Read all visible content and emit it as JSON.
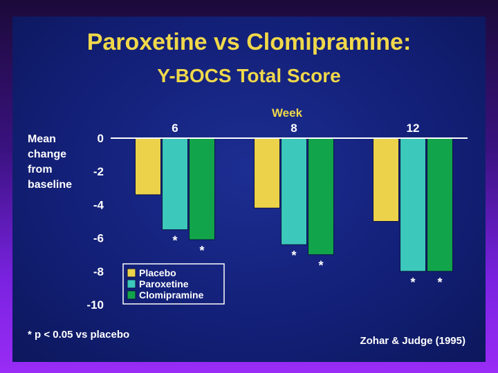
{
  "slide": {
    "title": "Paroxetine vs Clomipramine:",
    "subtitle": "Y-BOCS Total Score",
    "footnote": "* p < 0.05 vs placebo",
    "citation": "Zohar & Judge (1995)"
  },
  "chart_data": {
    "type": "bar",
    "title": "Paroxetine vs Clomipramine:",
    "subtitle": "Y-BOCS Total Score",
    "xlabel": "Week",
    "ylabel": "Mean change from baseline",
    "ylabel_lines": [
      "Mean",
      "change",
      "from",
      "baseline"
    ],
    "categories": [
      "6",
      "8",
      "12"
    ],
    "ylim": [
      -10,
      0
    ],
    "yticks": [
      0,
      -2,
      -4,
      -6,
      -8,
      -10
    ],
    "grid": false,
    "legend_position": "bottom-left",
    "series": [
      {
        "name": "Placebo",
        "color": "#ecd24a",
        "values": [
          -3.4,
          -4.2,
          -5.0
        ],
        "significant": [
          false,
          false,
          false
        ]
      },
      {
        "name": "Paroxetine",
        "color": "#3cc8ba",
        "values": [
          -5.5,
          -6.4,
          -8.0
        ],
        "significant": [
          true,
          true,
          true
        ]
      },
      {
        "name": "Clomipramine",
        "color": "#12a44a",
        "values": [
          -6.1,
          -7.0,
          -8.0
        ],
        "significant": [
          true,
          true,
          true
        ]
      }
    ],
    "significance_marker": "*"
  }
}
